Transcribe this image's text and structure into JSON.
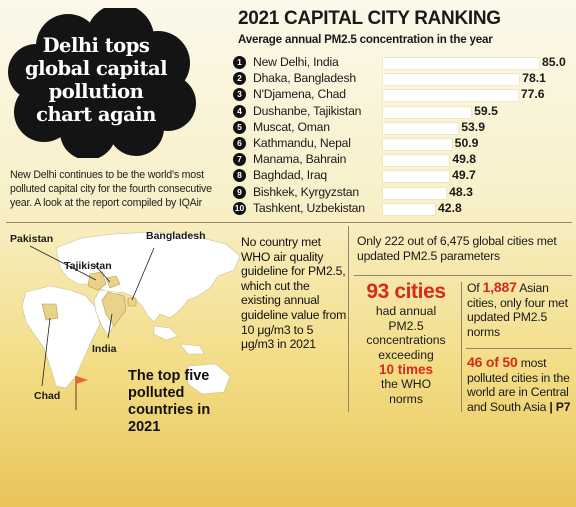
{
  "headline": [
    "Delhi tops",
    "global capital",
    "pollution",
    "chart again"
  ],
  "intro": "New Delhi continues to be the world's most polluted capital city for the fourth consecutive year. A look at the report compiled by IQAir",
  "chart_data": {
    "type": "bar",
    "title": "2021 CAPITAL CITY RANKING",
    "subtitle": "Average annual PM2.5 concentration in the year",
    "ranks": [
      "1",
      "2",
      "3",
      "4",
      "5",
      "6",
      "7",
      "8",
      "9",
      "10"
    ],
    "categories": [
      "New Delhi, India",
      "Dhaka, Bangladesh",
      "N'Djamena, Chad",
      "Dushanbe, Tajikistan",
      "Muscat, Oman",
      "Kathmandu, Nepal",
      "Manama, Bahrain",
      "Baghdad, Iraq",
      "Bishkek, Kyrgyzstan",
      "Tashkent, Uzbekistan"
    ],
    "values": [
      85.0,
      78.1,
      77.6,
      59.5,
      53.9,
      50.9,
      49.8,
      49.7,
      48.3,
      42.8
    ],
    "value_labels": [
      "85.0",
      "78.1",
      "77.6",
      "59.5",
      "53.9",
      "50.9",
      "49.8",
      "49.7",
      "48.3",
      "42.8"
    ]
  },
  "map": {
    "labels": [
      "Pakistan",
      "Bangladesh",
      "Tajikistan",
      "India",
      "Chad"
    ],
    "caption": "The top five polluted countries in 2021"
  },
  "facts": {
    "no_country": "No country met WHO air quality guideline for PM2.5, which cut the existing annual guideline value from 10 μg/m3 to 5 μg/m3 in 2021",
    "only222": "Only 222 out of 6,475 global cities met updated PM2.5 parameters",
    "cities93": {
      "big": "93 cities",
      "lines": [
        "had annual",
        "PM2.5",
        "concentrations",
        "exceeding"
      ],
      "times": "10 times",
      "after": [
        "the WHO",
        "norms"
      ]
    },
    "asian": {
      "pre": "Of ",
      "num": "1,887",
      "post": " Asian cities, only four met updated PM2.5 norms"
    },
    "fortysix": {
      "num": "46 of 50",
      "text": " most polluted cities in the world are in Central and South Asia",
      "tail": " | P7"
    }
  },
  "colors": {
    "accent_red": "#d9281e",
    "cloud": "#141414",
    "bar": "#ffffff",
    "background_top": "#fbf8ea",
    "background_bottom": "#e9c55a"
  }
}
